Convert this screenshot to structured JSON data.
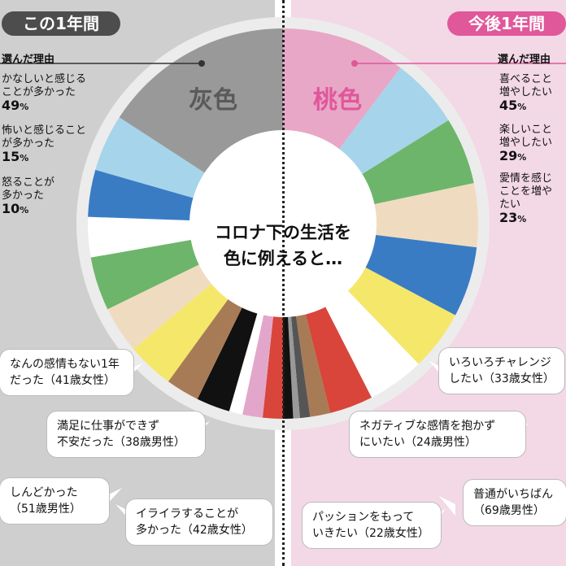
{
  "left": {
    "period_label": "この1年間",
    "color_name": "灰色",
    "reasons_title": "選んだ理由",
    "reasons": [
      {
        "text": "かなしいと感じる\nことが多かった",
        "pct": "49",
        "unit": "%"
      },
      {
        "text": "怖いと感じること\nが多かった",
        "pct": "15",
        "unit": "%"
      },
      {
        "text": "怒ることが\n多かった",
        "pct": "10",
        "unit": "%"
      }
    ],
    "bubbles": [
      "なんの感情もない1年\nだった（41歳女性）",
      "満足に仕事ができず\n不安だった（38歳男性）",
      "しんどかった\n（51歳男性）",
      "イライラすることが\n多かった（42歳女性）"
    ]
  },
  "right": {
    "period_label": "今後1年間",
    "color_name": "桃色",
    "reasons_title": "選んだ理由",
    "reasons": [
      {
        "text": "喜べること\n増やしたい",
        "pct": "45",
        "unit": "%"
      },
      {
        "text": "楽しいこと\n増やしたい",
        "pct": "29",
        "unit": "%"
      },
      {
        "text": "愛情を感じ\nことを増や\nたい",
        "pct": "23",
        "unit": "%"
      }
    ],
    "bubbles": [
      "いろいろチャレンジ\nしたい（33歳女性）",
      "ネガティブな感情を抱かず\nにいたい（24歳男性）",
      "普通がいちばん\n（69歳男性）",
      "パッションをもって\nいきたい（22歳女性）"
    ]
  },
  "center_text": "コロナ下の生活を\n色に例えると…",
  "colors": {
    "left_bg": "#cfcfcf",
    "right_bg": "#f3d8e6",
    "gray": "#999999",
    "pink": "#e8a7c7",
    "left_pill": "#4d4d4d",
    "right_pill": "#e0579a",
    "light_blue": "#a6d4ea",
    "blue": "#3a7cc4",
    "white": "#ffffff",
    "green": "#6db56a",
    "beige": "#efdcc0",
    "yellow": "#f5e76a",
    "brown": "#a87b57",
    "black": "#111111",
    "light_pink": "#e3a6cb",
    "red": "#d9453a",
    "dark_gray": "#555555"
  },
  "chart_data": {
    "type": "pie",
    "note_source": "visual wedge order only; values not printed",
    "series": [
      {
        "values": [
          100
        ]
      }
    ]
  }
}
